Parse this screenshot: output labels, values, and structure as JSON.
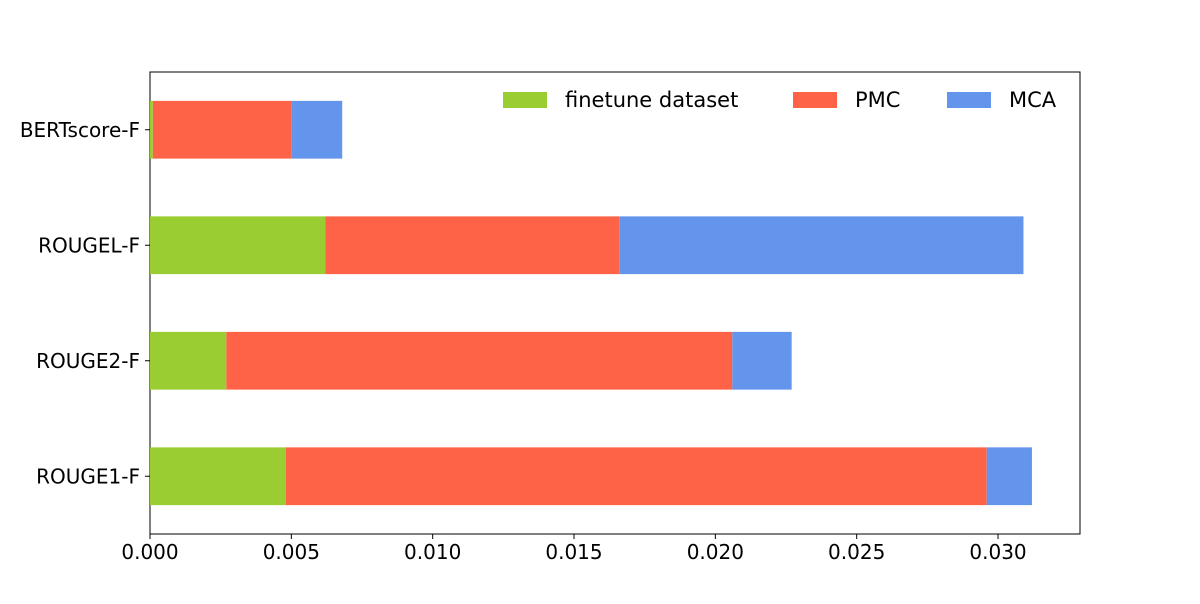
{
  "chart_data": {
    "type": "bar",
    "orientation": "horizontal",
    "stacked": true,
    "title": "",
    "xlabel": "",
    "ylabel": "",
    "categories": [
      "ROUGE1-F",
      "ROUGE2-F",
      "ROUGEL-F",
      "BERTscore-F"
    ],
    "series": [
      {
        "name": "finetune dataset",
        "color": "#9ACD32",
        "values": [
          0.0048,
          0.0027,
          0.0062,
          0.0001
        ]
      },
      {
        "name": "PMC",
        "color": "#FF6347",
        "values": [
          0.0248,
          0.0179,
          0.0104,
          0.0049
        ]
      },
      {
        "name": "MCA",
        "color": "#6495ED",
        "values": [
          0.0016,
          0.0021,
          0.0143,
          0.0018
        ]
      }
    ],
    "xlim": [
      0,
      0.0329
    ],
    "xticks": [
      0.0,
      0.005,
      0.01,
      0.015,
      0.02,
      0.025,
      0.03
    ],
    "xtick_labels": [
      "0.000",
      "0.005",
      "0.010",
      "0.015",
      "0.020",
      "0.025",
      "0.030"
    ],
    "grid": false,
    "legend_position": "top-right"
  }
}
